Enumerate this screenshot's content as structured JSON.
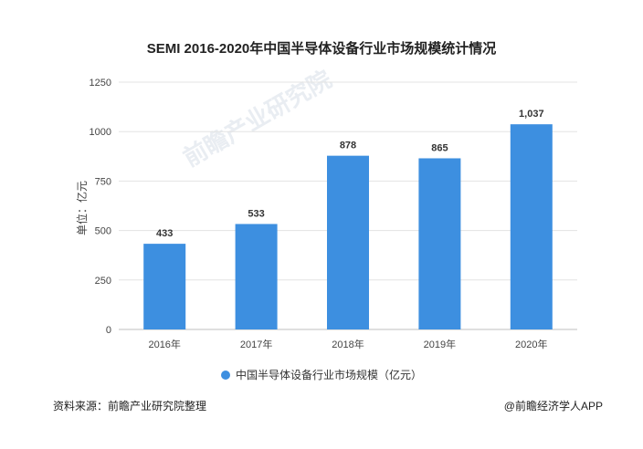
{
  "chart_data": {
    "type": "bar",
    "title": "SEMI 2016-2020年中国半导体设备行业市场规模统计情况",
    "categories": [
      "2016年",
      "2017年",
      "2018年",
      "2019年",
      "2020年"
    ],
    "series": [
      {
        "name": "中国半导体设备行业市场规模（亿元）",
        "values": [
          433,
          533,
          878,
          865,
          1037
        ]
      }
    ],
    "data_labels": [
      "433",
      "533",
      "878",
      "865",
      "1,037"
    ],
    "ylabel": "单位：亿元",
    "xlabel": "",
    "ylim": [
      0,
      1250
    ],
    "yticks": [
      "0",
      "250",
      "500",
      "750",
      "1000",
      "1250"
    ],
    "ytick_values": [
      0,
      250,
      500,
      750,
      1000,
      1250
    ],
    "grid": true,
    "legend": "bottom",
    "bar_color": "#3d8fe0"
  },
  "footer": {
    "source": "资料来源：前瞻产业研究院整理",
    "brand": "@前瞻经济学人APP"
  },
  "watermark": "前瞻产业研究院"
}
